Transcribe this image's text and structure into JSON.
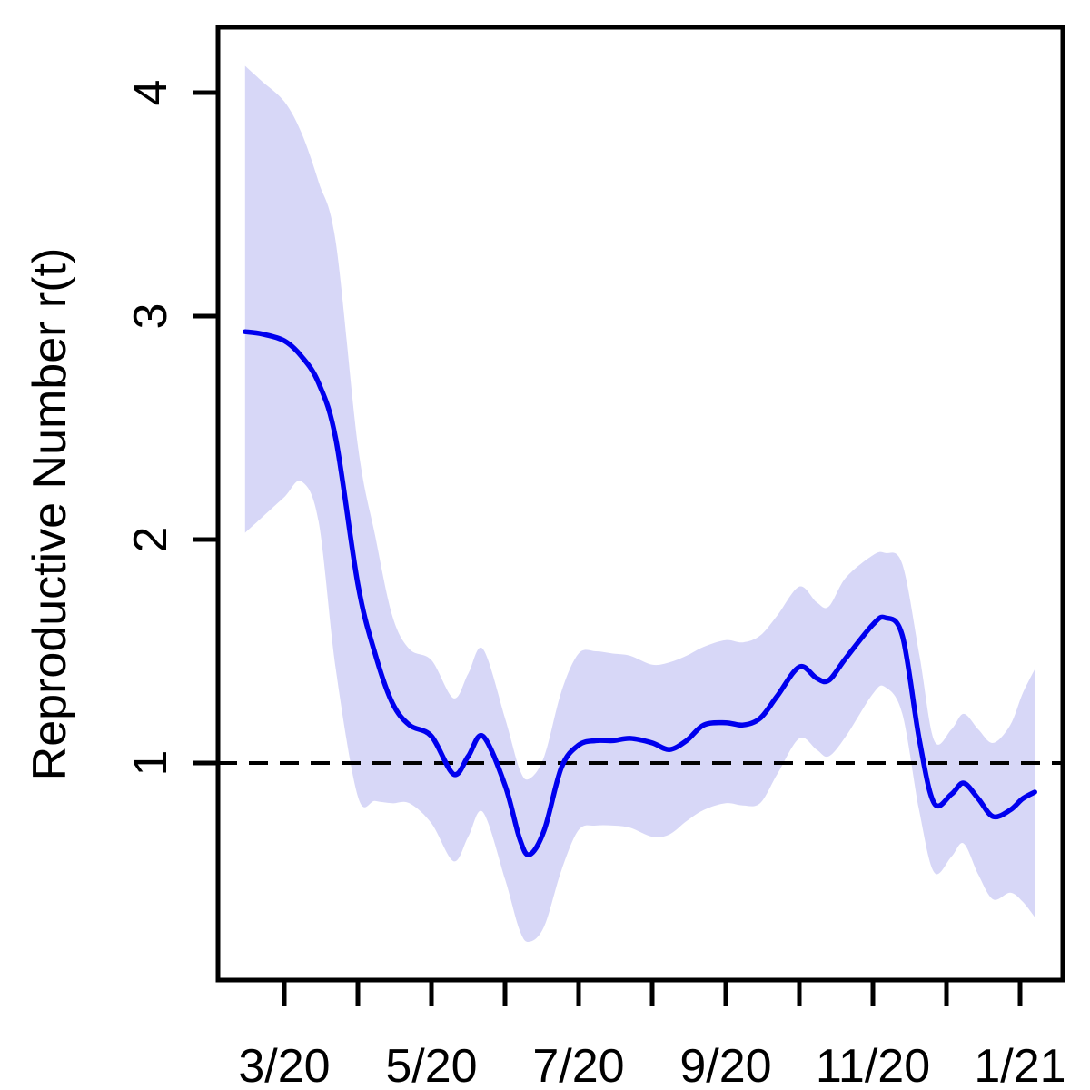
{
  "chart_data": {
    "type": "line",
    "title": "",
    "xlabel": "",
    "ylabel": "Reproductive Number r(t)",
    "ylim": [
      0.03,
      4.29
    ],
    "grid": false,
    "legend": "none",
    "y_ticks": [
      1,
      2,
      3,
      4
    ],
    "x_ticks": {
      "months": [
        "3/20",
        "4/20",
        "5/20",
        "6/20",
        "7/20",
        "8/20",
        "9/20",
        "10/20",
        "11/20",
        "12/20",
        "1/21"
      ],
      "labeled": [
        "3/20",
        "5/20",
        "7/20",
        "9/20",
        "11/20",
        "1/21"
      ]
    },
    "reference_line": {
      "y": 1.0,
      "style": "dashed",
      "color": "#000000"
    },
    "colors": {
      "line": "#0000ee",
      "band": "#d7d7f7",
      "axis": "#000000"
    },
    "dates": [
      "2020-02-15",
      "2020-02-22",
      "2020-03-01",
      "2020-03-08",
      "2020-03-15",
      "2020-03-22",
      "2020-04-01",
      "2020-04-08",
      "2020-04-15",
      "2020-04-22",
      "2020-05-01",
      "2020-05-10",
      "2020-05-16",
      "2020-05-22",
      "2020-06-01",
      "2020-06-07",
      "2020-06-11",
      "2020-06-17",
      "2020-06-24",
      "2020-07-01",
      "2020-07-08",
      "2020-07-15",
      "2020-07-22",
      "2020-08-01",
      "2020-08-08",
      "2020-08-15",
      "2020-08-22",
      "2020-09-01",
      "2020-09-08",
      "2020-09-15",
      "2020-09-22",
      "2020-10-01",
      "2020-10-08",
      "2020-10-13",
      "2020-10-20",
      "2020-11-01",
      "2020-11-06",
      "2020-11-13",
      "2020-11-20",
      "2020-11-26",
      "2020-12-03",
      "2020-12-08",
      "2020-12-14",
      "2020-12-20",
      "2020-12-27",
      "2021-01-02",
      "2021-01-07"
    ],
    "series": [
      {
        "name": "mean",
        "values": [
          2.93,
          2.92,
          2.89,
          2.82,
          2.7,
          2.45,
          1.8,
          1.49,
          1.27,
          1.17,
          1.12,
          0.95,
          1.03,
          1.12,
          0.9,
          0.66,
          0.59,
          0.7,
          0.98,
          1.08,
          1.1,
          1.1,
          1.11,
          1.09,
          1.06,
          1.1,
          1.17,
          1.18,
          1.17,
          1.2,
          1.3,
          1.43,
          1.38,
          1.37,
          1.47,
          1.62,
          1.65,
          1.57,
          1.1,
          0.82,
          0.86,
          0.91,
          0.84,
          0.76,
          0.79,
          0.84,
          0.87
        ]
      },
      {
        "name": "band_lower",
        "values": [
          2.03,
          2.1,
          2.19,
          2.26,
          2.08,
          1.42,
          0.85,
          0.83,
          0.82,
          0.82,
          0.73,
          0.56,
          0.67,
          0.78,
          0.48,
          0.25,
          0.2,
          0.27,
          0.52,
          0.7,
          0.72,
          0.72,
          0.71,
          0.67,
          0.68,
          0.74,
          0.79,
          0.82,
          0.81,
          0.82,
          0.95,
          1.11,
          1.06,
          1.03,
          1.12,
          1.31,
          1.34,
          1.22,
          0.78,
          0.51,
          0.58,
          0.64,
          0.5,
          0.39,
          0.42,
          0.38,
          0.31
        ]
      },
      {
        "name": "band_upper",
        "values": [
          4.12,
          4.05,
          3.96,
          3.82,
          3.6,
          3.33,
          2.42,
          2.02,
          1.66,
          1.51,
          1.46,
          1.29,
          1.4,
          1.51,
          1.2,
          0.97,
          0.93,
          1.03,
          1.32,
          1.49,
          1.5,
          1.49,
          1.48,
          1.44,
          1.45,
          1.48,
          1.52,
          1.55,
          1.54,
          1.57,
          1.66,
          1.79,
          1.72,
          1.7,
          1.83,
          1.93,
          1.94,
          1.89,
          1.48,
          1.1,
          1.15,
          1.22,
          1.15,
          1.09,
          1.17,
          1.31,
          1.42
        ]
      }
    ]
  }
}
